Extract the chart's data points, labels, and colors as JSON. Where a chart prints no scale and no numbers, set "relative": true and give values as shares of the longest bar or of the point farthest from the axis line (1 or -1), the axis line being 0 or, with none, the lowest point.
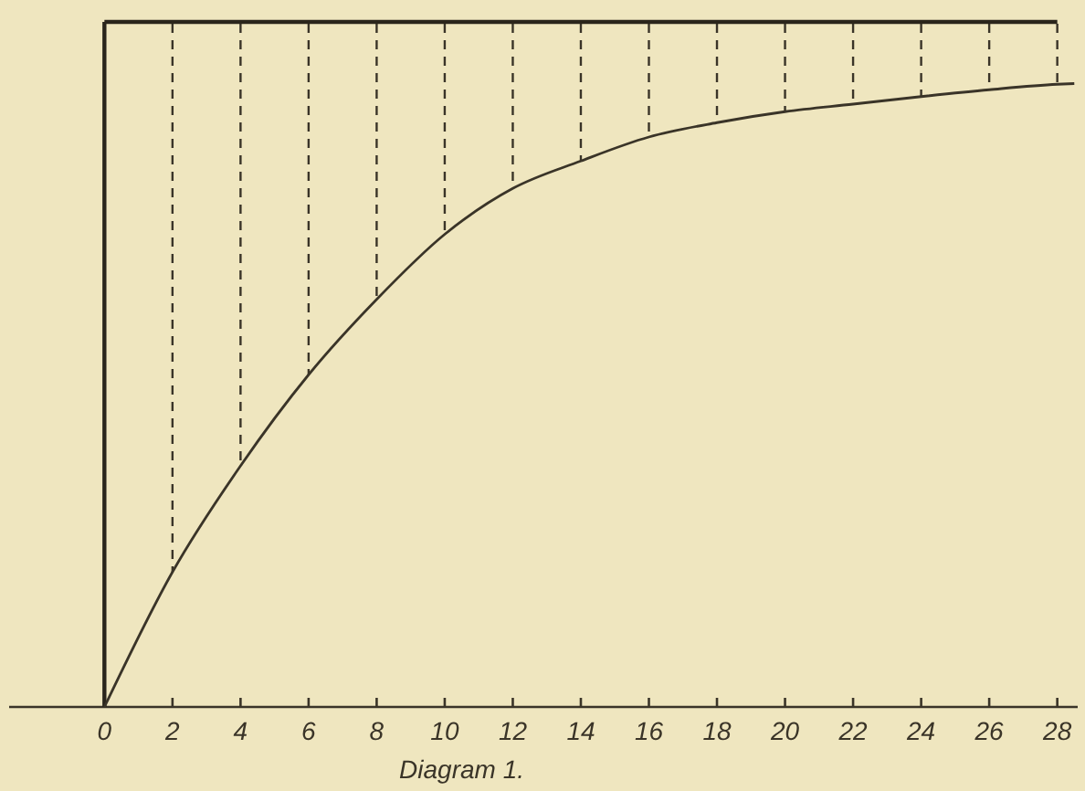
{
  "chart_data": {
    "type": "line",
    "title": "Diagram 1.",
    "relative": true,
    "xlim": [
      -2.8,
      28.6
    ],
    "xticks": [
      0,
      2,
      4,
      6,
      8,
      10,
      12,
      14,
      16,
      18,
      20,
      22,
      24,
      26,
      28
    ],
    "grid": "x",
    "marker": "none",
    "line_style": "solid",
    "ref_lines": [
      {
        "axis": "x",
        "value": 0,
        "color": "#2a251b"
      }
    ],
    "series": [
      {
        "color": "#2a251b",
        "x": [
          0,
          28
        ],
        "values": [
          1,
          1
        ]
      },
      {
        "color": "#3a3428",
        "x": [
          0,
          2,
          4,
          6,
          8,
          10,
          12,
          14,
          16,
          18,
          20,
          22,
          24,
          26,
          28,
          28.5
        ],
        "values": [
          0,
          0.197,
          0.352,
          0.485,
          0.595,
          0.69,
          0.757,
          0.797,
          0.832,
          0.853,
          0.869,
          0.88,
          0.891,
          0.901,
          0.909,
          0.91
        ]
      }
    ]
  }
}
